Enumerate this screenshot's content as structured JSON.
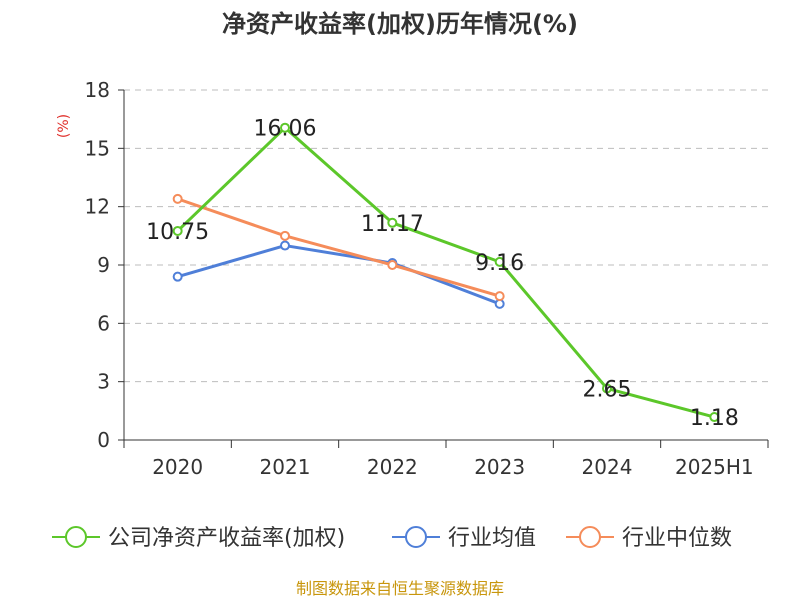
{
  "chart_data": {
    "type": "line",
    "title": "净资产收益率(加权)历年情况(%)",
    "ylabel": "(%)",
    "xlabel": "",
    "categories": [
      "2020",
      "2021",
      "2022",
      "2023",
      "2024",
      "2025H1"
    ],
    "ylim": [
      0,
      18
    ],
    "yticks": [
      0,
      3,
      6,
      9,
      12,
      15,
      18
    ],
    "grid": "horizontal-dashed",
    "legend_position": "bottom",
    "series": [
      {
        "name": "公司净资产收益率(加权)",
        "color": "#5cc72a",
        "values": [
          10.75,
          16.06,
          11.17,
          9.16,
          2.65,
          1.18
        ],
        "labels": [
          "10.75",
          "16.06",
          "11.17",
          "9.16",
          "2.65",
          "1.18"
        ]
      },
      {
        "name": "行业均值",
        "color": "#4f7fd8",
        "values": [
          8.4,
          10.0,
          9.1,
          7.0,
          null,
          null
        ]
      },
      {
        "name": "行业中位数",
        "color": "#f58c5a",
        "values": [
          12.4,
          10.5,
          9.0,
          7.4,
          null,
          null
        ]
      }
    ]
  },
  "footer": {
    "source": "制图数据来自恒生聚源数据库"
  }
}
